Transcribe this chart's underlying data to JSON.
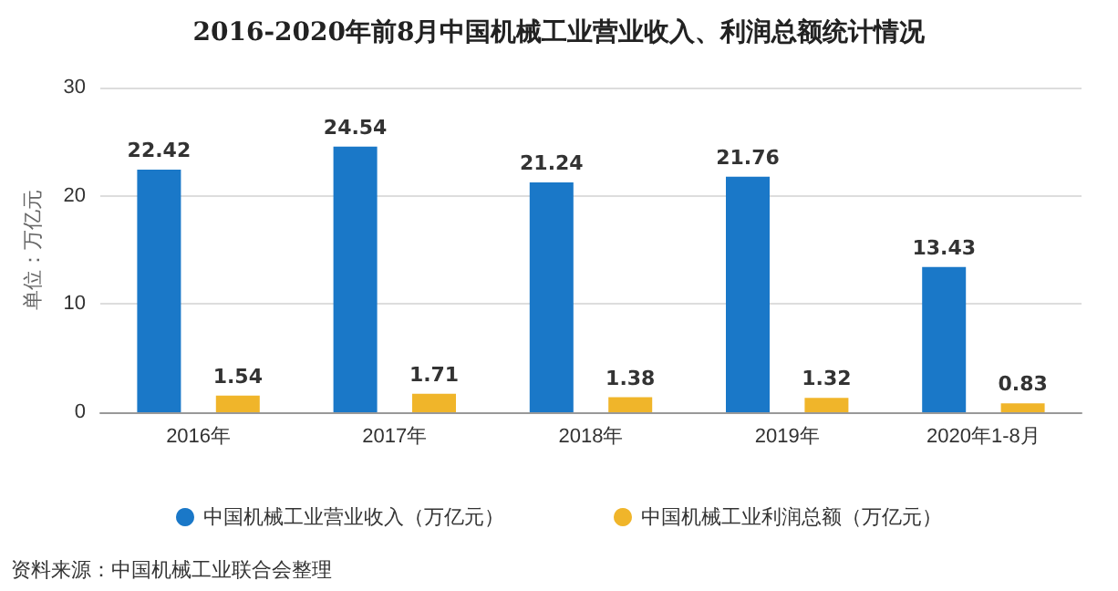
{
  "chart_data": {
    "type": "bar",
    "title": "2016-2020年前8月中国机械工业营业收入、利润总额统计情况",
    "ylabel": "单位：万亿元",
    "categories": [
      "2016年",
      "2017年",
      "2018年",
      "2019年",
      "2020年1-8月"
    ],
    "series": [
      {
        "name": "中国机械工业营业收入（万亿元）",
        "color": "#1a78c8",
        "values": [
          22.42,
          24.54,
          21.24,
          21.76,
          13.43
        ]
      },
      {
        "name": "中国机械工业利润总额（万亿元）",
        "color": "#f0b52a",
        "values": [
          1.54,
          1.71,
          1.38,
          1.32,
          0.83
        ]
      }
    ],
    "ylim": [
      0,
      30
    ],
    "yticks": [
      0,
      10,
      20,
      30
    ],
    "grid": "y",
    "legend": "bottom",
    "data_labels": true,
    "annotations": [
      "资料来源：中国机械工业联合会整理"
    ]
  }
}
